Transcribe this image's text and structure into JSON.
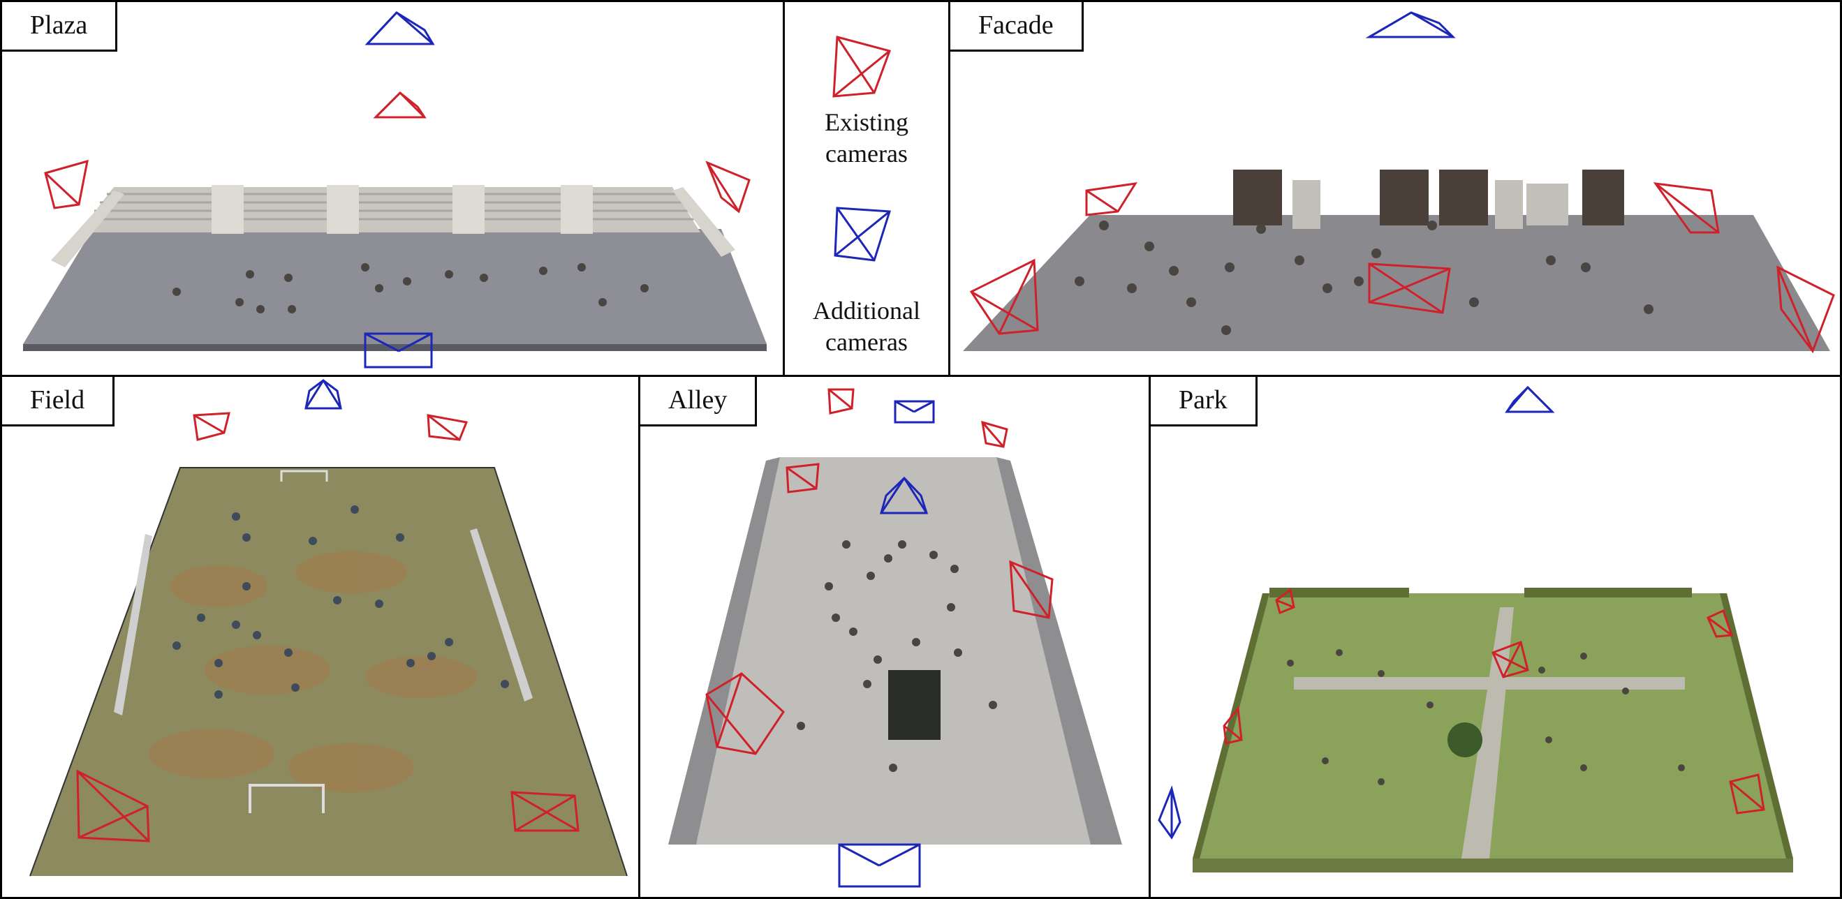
{
  "panels": {
    "plaza": {
      "label": "Plaza"
    },
    "facade": {
      "label": "Facade"
    },
    "field": {
      "label": "Field"
    },
    "alley": {
      "label": "Alley"
    },
    "park": {
      "label": "Park"
    }
  },
  "legend": {
    "existing": {
      "line1": "Existing",
      "line2": "cameras",
      "color": "#d0202a"
    },
    "additional": {
      "line1": "Additional",
      "line2": "cameras",
      "color": "#1c26b8"
    }
  },
  "colors": {
    "existing_camera": "#d0202a",
    "additional_camera": "#1c26b8"
  }
}
